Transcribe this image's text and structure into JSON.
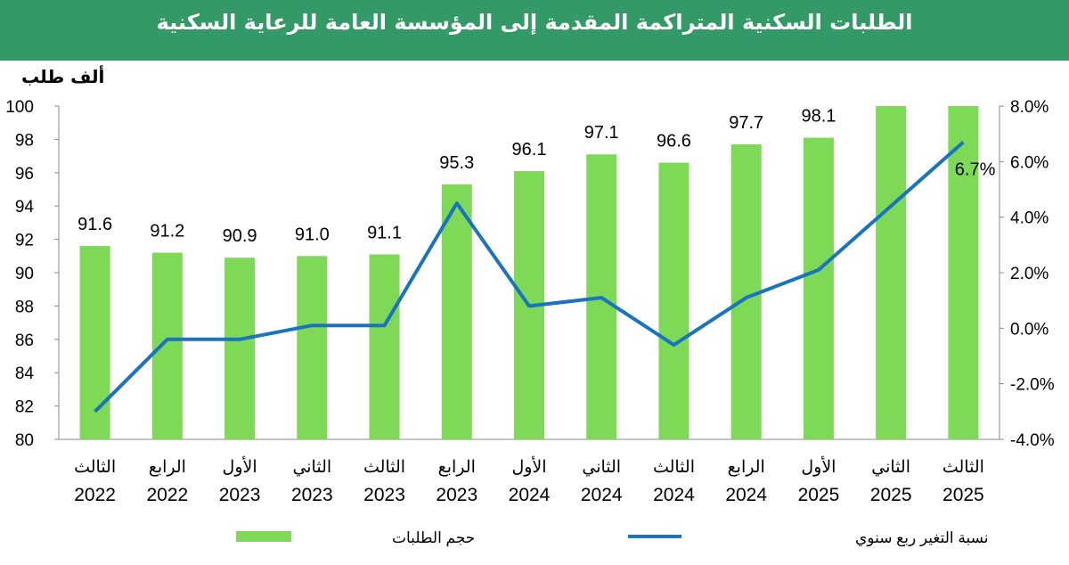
{
  "title": "الطلبات السكنية المتراكمة المقدمة إلى المؤسسة العامة للرعاية السكنية",
  "colors": {
    "header": "#339966",
    "bars": "#7ed957",
    "line": "#1a73c0"
  },
  "chart_data": {
    "type": "bar+line",
    "ylabel": "ألف طلب",
    "ylim": [
      80,
      100
    ],
    "y_ticks": [
      80,
      82,
      84,
      86,
      88,
      90,
      92,
      94,
      96,
      98,
      100
    ],
    "y2lim": [
      -4,
      8
    ],
    "y2_ticks": [
      "-4.0%",
      "-2.0%",
      "0.0%",
      "2.0%",
      "4.0%",
      "6.0%",
      "8.0%"
    ],
    "categories": [
      [
        "الثالث",
        "2022"
      ],
      [
        "الرابع",
        "2022"
      ],
      [
        "الأول",
        "2023"
      ],
      [
        "الثاني",
        "2023"
      ],
      [
        "الثالث",
        "2023"
      ],
      [
        "الرابع",
        "2023"
      ],
      [
        "الأول",
        "2024"
      ],
      [
        "الثاني",
        "2024"
      ],
      [
        "الثالث",
        "2024"
      ],
      [
        "الرابع",
        "2024"
      ],
      [
        "الأول",
        "2025"
      ],
      [
        "الثاني",
        "2025"
      ],
      [
        "الثالث",
        "2025"
      ]
    ],
    "series": [
      {
        "name": "حجم الطلبات",
        "type": "bar",
        "axis": "left",
        "values": [
          91.6,
          91.2,
          90.9,
          91.0,
          91.1,
          95.3,
          96.1,
          97.1,
          96.6,
          97.7,
          98.1,
          100,
          100
        ],
        "labels": [
          "91.6",
          "91.2",
          "90.9",
          "91.0",
          "91.1",
          "95.3",
          "96.1",
          "97.1",
          "96.6",
          "97.7",
          "98.1",
          "",
          ""
        ]
      },
      {
        "name": "نسبة التغير ربع سنوي",
        "type": "line",
        "axis": "right",
        "values": [
          -3.0,
          -0.4,
          -0.4,
          0.1,
          0.1,
          4.5,
          0.8,
          1.1,
          -0.6,
          1.1,
          2.1,
          4.4,
          6.7
        ],
        "labels": [
          "",
          "",
          "",
          "",
          "",
          "",
          "",
          "",
          "",
          "",
          "",
          "",
          "6.7%"
        ]
      }
    ],
    "legend": "bottom"
  }
}
